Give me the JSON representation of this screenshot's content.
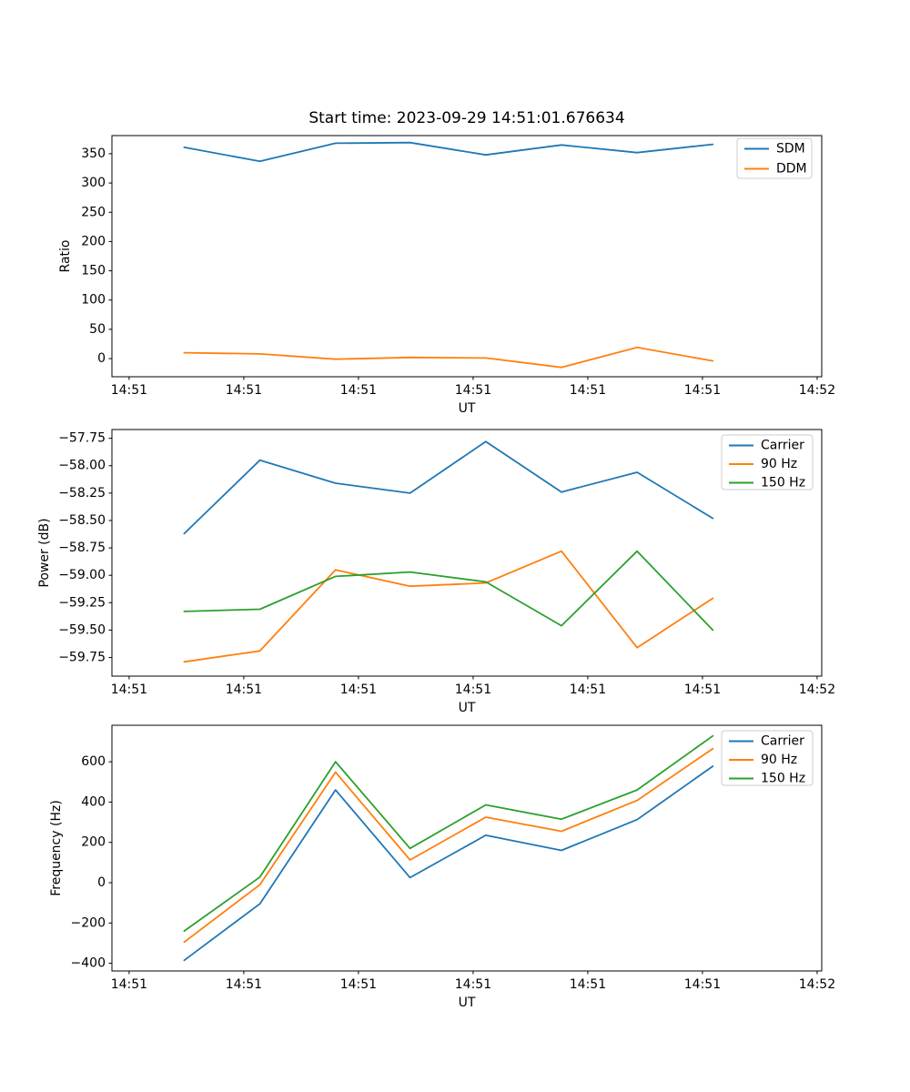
{
  "title": "Start time: 2023-09-29 14:51:01.676634",
  "colors": {
    "C0": "#1f77b4",
    "C1": "#ff7f0e",
    "C2": "#2ca02c",
    "legend_edge": "#cccccc",
    "spine": "#000000",
    "background": "#ffffff"
  },
  "x_axis": {
    "label": "UT",
    "tick_seconds": [
      0,
      10,
      20,
      30,
      40,
      50,
      60
    ],
    "tick_labels": [
      "14:51",
      "14:51",
      "14:51",
      "14:51",
      "14:51",
      "14:51",
      "14:52"
    ],
    "xlim": [
      -1.5,
      60.4
    ]
  },
  "chart_data": [
    {
      "type": "line",
      "title": "Start time: 2023-09-29 14:51:01.676634",
      "xlabel": "UT",
      "ylabel": "Ratio",
      "ylim": [
        -31,
        381
      ],
      "grid": false,
      "legend_position": "upper right",
      "ytick_values": [
        0,
        50,
        100,
        150,
        200,
        250,
        300,
        350
      ],
      "ytick_labels": [
        "0",
        "50",
        "100",
        "150",
        "200",
        "250",
        "300",
        "350"
      ],
      "x": [
        4.8,
        11.4,
        18.0,
        24.5,
        31.1,
        37.7,
        44.3,
        50.9
      ],
      "series": [
        {
          "name": "SDM",
          "color": "#1f77b4",
          "values": [
            361,
            337,
            368,
            369,
            348,
            365,
            352,
            366
          ]
        },
        {
          "name": "DDM",
          "color": "#ff7f0e",
          "values": [
            10,
            8,
            -1,
            2,
            1,
            -15,
            19,
            -4
          ]
        }
      ]
    },
    {
      "type": "line",
      "title": "",
      "xlabel": "UT",
      "ylabel": "Power (dB)",
      "ylim": [
        -59.92,
        -57.67
      ],
      "grid": false,
      "legend_position": "upper right",
      "ytick_values": [
        -59.75,
        -59.5,
        -59.25,
        -59.0,
        -58.75,
        -58.5,
        -58.25,
        -58.0,
        -57.75
      ],
      "ytick_labels": [
        "−59.75",
        "−59.50",
        "−59.25",
        "−59.00",
        "−58.75",
        "−58.50",
        "−58.25",
        "−58.00",
        "−57.75"
      ],
      "x": [
        4.8,
        11.4,
        18.0,
        24.5,
        31.1,
        37.7,
        44.3,
        50.9
      ],
      "series": [
        {
          "name": "Carrier",
          "color": "#1f77b4",
          "values": [
            -58.62,
            -57.95,
            -58.16,
            -58.25,
            -57.78,
            -58.24,
            -58.06,
            -58.48
          ]
        },
        {
          "name": "90 Hz",
          "color": "#ff7f0e",
          "values": [
            -59.79,
            -59.69,
            -58.95,
            -59.1,
            -59.07,
            -58.78,
            -59.66,
            -59.21
          ]
        },
        {
          "name": "150 Hz",
          "color": "#2ca02c",
          "values": [
            -59.33,
            -59.31,
            -59.01,
            -58.97,
            -59.06,
            -59.46,
            -58.78,
            -59.5
          ]
        }
      ]
    },
    {
      "type": "line",
      "title": "",
      "xlabel": "UT",
      "ylabel": "Frequency (Hz)",
      "ylim": [
        -438,
        781
      ],
      "grid": false,
      "legend_position": "upper right",
      "ytick_values": [
        -400,
        -200,
        0,
        200,
        400,
        600
      ],
      "ytick_labels": [
        "−400",
        "−200",
        "0",
        "200",
        "400",
        "600"
      ],
      "x": [
        4.8,
        11.4,
        18.0,
        24.5,
        31.1,
        37.7,
        44.3,
        50.9
      ],
      "series": [
        {
          "name": "Carrier",
          "color": "#1f77b4",
          "values": [
            -385,
            -105,
            460,
            25,
            235,
            160,
            313,
            578
          ]
        },
        {
          "name": "90 Hz",
          "color": "#ff7f0e",
          "values": [
            -295,
            -10,
            548,
            113,
            325,
            255,
            408,
            665
          ]
        },
        {
          "name": "150 Hz",
          "color": "#2ca02c",
          "values": [
            -240,
            28,
            600,
            170,
            386,
            315,
            460,
            728
          ]
        }
      ]
    }
  ]
}
